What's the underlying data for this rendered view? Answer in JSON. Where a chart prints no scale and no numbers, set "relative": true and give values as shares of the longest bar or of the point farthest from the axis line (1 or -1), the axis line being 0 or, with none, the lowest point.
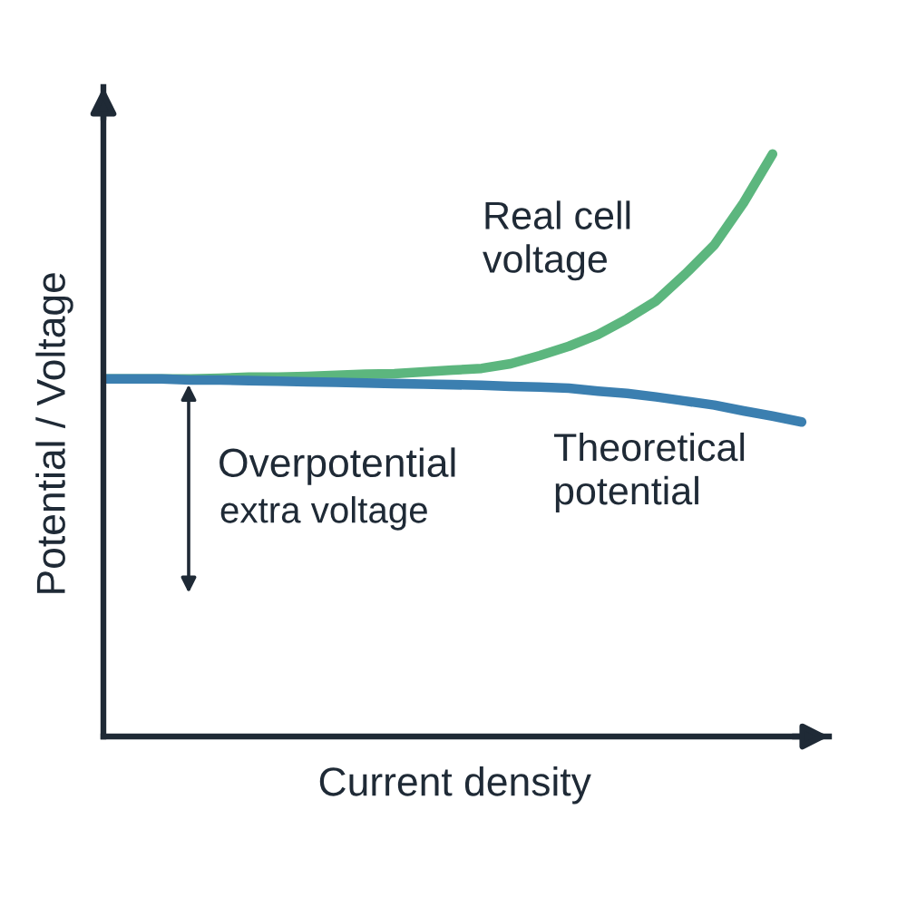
{
  "chart_data": {
    "type": "line",
    "relative": true,
    "xlabel": "Current density",
    "ylabel": "Potential / Voltage",
    "categories": [
      null,
      null,
      null,
      null,
      null,
      null,
      null,
      null,
      null,
      null,
      null,
      null,
      null,
      null,
      null,
      null,
      null,
      null,
      null,
      null,
      null,
      null,
      null,
      null,
      null
    ],
    "series": [
      {
        "name": "Real cell voltage",
        "color": "#5cb67e",
        "values": [
          0.614,
          0.614,
          0.614,
          0.614,
          0.615,
          0.617,
          0.617,
          0.618,
          0.62,
          0.622,
          0.623,
          0.626,
          0.629,
          0.632,
          0.64,
          0.654,
          0.67,
          0.69,
          0.717,
          0.748,
          0.794,
          0.844,
          0.916,
          1.0,
          null
        ]
      },
      {
        "name": "Theoretical potential",
        "color": "#3b7fb0",
        "values": [
          0.614,
          0.614,
          0.614,
          0.612,
          0.612,
          0.611,
          0.61,
          0.609,
          0.608,
          0.607,
          0.606,
          0.605,
          0.604,
          0.603,
          0.601,
          0.6,
          0.598,
          0.593,
          0.589,
          0.583,
          0.576,
          0.569,
          0.559,
          0.55,
          0.54
        ]
      }
    ],
    "annotations": [
      "Overpotential",
      "extra voltage"
    ]
  }
}
